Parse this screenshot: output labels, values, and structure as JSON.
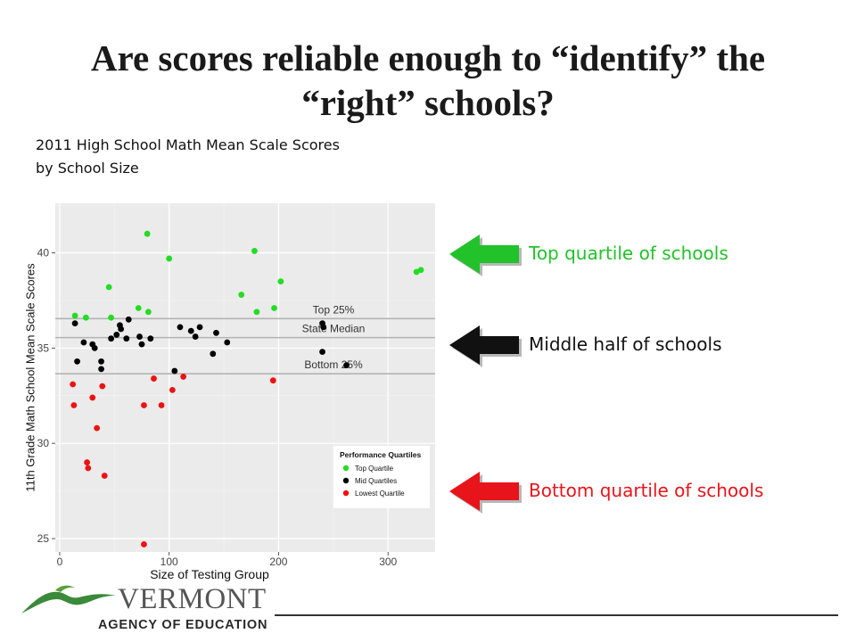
{
  "slide": {
    "title_line1": "Are scores reliable enough to “identify” the",
    "title_line2": "“right” schools?",
    "subtitle_line1": "2011 High School Math Mean Scale Scores",
    "subtitle_line2": "by School Size"
  },
  "callouts": {
    "top_label": "Top quartile of schools",
    "middle_label": "Middle half of schools",
    "bottom_label": "Bottom quartile of schools",
    "colors": {
      "top": "#22c22a",
      "middle": "#111111",
      "bottom": "#e8141b"
    }
  },
  "footer": {
    "brand_name": "VERMONT",
    "brand_sub": "AGENCY OF EDUCATION",
    "logo_colors": {
      "mountain": "#3b8a3a",
      "swoosh": "#5aa03a"
    }
  },
  "chart_data": {
    "type": "scatter",
    "title": "",
    "xlabel": "Size of Testing Group",
    "ylabel": "11th Grade Math School Mean Scale Scores",
    "xlim": [
      -4,
      343
    ],
    "ylim": [
      24.3,
      42.6
    ],
    "x_ticks": [
      0,
      100,
      200,
      300
    ],
    "y_ticks": [
      25,
      30,
      35,
      40
    ],
    "grid": true,
    "background": "#ebebeb",
    "reference_lines": [
      {
        "label": "Top 25%",
        "y": 36.55
      },
      {
        "label": "State Median",
        "y": 35.55
      },
      {
        "label": "Bottom 25%",
        "y": 33.65
      }
    ],
    "legend": {
      "title": "Performance Quartiles",
      "position": "bottom-right",
      "entries": [
        {
          "label": "Top Quartile",
          "color": "#22dd22"
        },
        {
          "label": "Mid Quartiles",
          "color": "#000000"
        },
        {
          "label": "Lowest Quartile",
          "color": "#ee1111"
        }
      ]
    },
    "series": [
      {
        "name": "Top Quartile",
        "color": "#22dd22",
        "points": [
          {
            "x": 80,
            "y": 41
          },
          {
            "x": 100,
            "y": 39.7
          },
          {
            "x": 178,
            "y": 40.1
          },
          {
            "x": 45,
            "y": 38.2
          },
          {
            "x": 202,
            "y": 38.5
          },
          {
            "x": 166,
            "y": 37.8
          },
          {
            "x": 196,
            "y": 37.1
          },
          {
            "x": 180,
            "y": 36.9
          },
          {
            "x": 72,
            "y": 37.1
          },
          {
            "x": 81,
            "y": 36.9
          },
          {
            "x": 14,
            "y": 36.7
          },
          {
            "x": 24,
            "y": 36.6
          },
          {
            "x": 47,
            "y": 36.6
          },
          {
            "x": 326,
            "y": 39
          },
          {
            "x": 330,
            "y": 39.1
          }
        ]
      },
      {
        "name": "Mid Quartiles",
        "color": "#000000",
        "points": [
          {
            "x": 14,
            "y": 36.3
          },
          {
            "x": 63,
            "y": 36.5
          },
          {
            "x": 55,
            "y": 36.2
          },
          {
            "x": 56,
            "y": 36
          },
          {
            "x": 110,
            "y": 36.1
          },
          {
            "x": 120,
            "y": 35.9
          },
          {
            "x": 128,
            "y": 36.1
          },
          {
            "x": 143,
            "y": 35.8
          },
          {
            "x": 240,
            "y": 36.3
          },
          {
            "x": 241,
            "y": 36.1
          },
          {
            "x": 22,
            "y": 35.3
          },
          {
            "x": 47,
            "y": 35.5
          },
          {
            "x": 52,
            "y": 35.7
          },
          {
            "x": 61,
            "y": 35.5
          },
          {
            "x": 73,
            "y": 35.6
          },
          {
            "x": 83,
            "y": 35.5
          },
          {
            "x": 124,
            "y": 35.6
          },
          {
            "x": 153,
            "y": 35.3
          },
          {
            "x": 30,
            "y": 35.2
          },
          {
            "x": 32,
            "y": 35
          },
          {
            "x": 75,
            "y": 35.2
          },
          {
            "x": 16,
            "y": 34.3
          },
          {
            "x": 38,
            "y": 34.3
          },
          {
            "x": 140,
            "y": 34.7
          },
          {
            "x": 240,
            "y": 34.8
          },
          {
            "x": 262,
            "y": 34.1
          },
          {
            "x": 38,
            "y": 33.9
          },
          {
            "x": 105,
            "y": 33.8
          }
        ]
      },
      {
        "name": "Lowest Quartile",
        "color": "#ee1111",
        "points": [
          {
            "x": 12,
            "y": 33.1
          },
          {
            "x": 86,
            "y": 33.4
          },
          {
            "x": 113,
            "y": 33.5
          },
          {
            "x": 195,
            "y": 33.3
          },
          {
            "x": 39,
            "y": 33
          },
          {
            "x": 103,
            "y": 32.8
          },
          {
            "x": 30,
            "y": 32.4
          },
          {
            "x": 13,
            "y": 32
          },
          {
            "x": 77,
            "y": 32
          },
          {
            "x": 93,
            "y": 32
          },
          {
            "x": 34,
            "y": 30.8
          },
          {
            "x": 25,
            "y": 29
          },
          {
            "x": 26,
            "y": 28.7
          },
          {
            "x": 41,
            "y": 28.3
          },
          {
            "x": 77,
            "y": 24.7
          }
        ]
      }
    ]
  }
}
